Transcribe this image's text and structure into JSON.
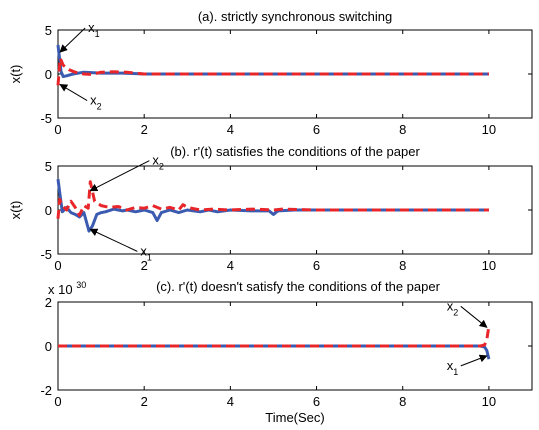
{
  "colors": {
    "x1": "#3a5bb0",
    "x2": "#e8262a",
    "axis": "#000000"
  },
  "x_label": "Time(Sec)",
  "chart_data": [
    {
      "type": "line",
      "title": "(a). strictly synchronous switching",
      "ylabel": "x(t)",
      "xlim": [
        0,
        11
      ],
      "ylim": [
        -5,
        5
      ],
      "xticks": [
        "0",
        "2",
        "4",
        "6",
        "8",
        "10"
      ],
      "yticks": [
        "-5",
        "0",
        "5"
      ],
      "exponent": "",
      "annotations": [
        {
          "label": "x",
          "sub": "1",
          "series": "x1",
          "point": [
            0.05,
            2.5
          ]
        },
        {
          "label": "x",
          "sub": "2",
          "series": "x2",
          "point": [
            0.05,
            -1.2
          ]
        }
      ],
      "series": [
        {
          "id": "x1",
          "color": "#3a5bb0",
          "dashed": false,
          "x": [
            0,
            0.03,
            0.07,
            0.12,
            0.2,
            0.35,
            0.6,
            1.0,
            1.5,
            2.0,
            3.0,
            5.0,
            7.0,
            10.0
          ],
          "y": [
            3.3,
            2.0,
            0.3,
            -0.3,
            -0.2,
            0.0,
            0.2,
            0.1,
            0.1,
            0.0,
            0.0,
            0.0,
            0.0,
            0.0
          ]
        },
        {
          "id": "x2",
          "color": "#e8262a",
          "dashed": true,
          "x": [
            0,
            0.05,
            0.12,
            0.25,
            0.4,
            0.6,
            0.8,
            1.0,
            1.3,
            1.6,
            2.0,
            3.0,
            5.0,
            10.0
          ],
          "y": [
            -1.3,
            1.8,
            1.0,
            0.5,
            0.2,
            0.0,
            -0.05,
            0.2,
            0.25,
            0.2,
            0.0,
            0.0,
            0.0,
            0.0
          ]
        }
      ]
    },
    {
      "type": "line",
      "title": "(b). r'(t) satisfies the conditions of the paper",
      "ylabel": "x(t)",
      "xlim": [
        0,
        11
      ],
      "ylim": [
        -5,
        5
      ],
      "xticks": [
        "0",
        "2",
        "4",
        "6",
        "8",
        "10"
      ],
      "yticks": [
        "-5",
        "0",
        "5"
      ],
      "exponent": "",
      "annotations": [
        {
          "label": "x",
          "sub": "2",
          "series": "x2",
          "point": [
            0.75,
            2.2
          ]
        },
        {
          "label": "x",
          "sub": "1",
          "series": "x1",
          "point": [
            0.75,
            -2.2
          ]
        }
      ],
      "series": [
        {
          "id": "x1",
          "color": "#3a5bb0",
          "dashed": false,
          "x": [
            0,
            0.04,
            0.1,
            0.2,
            0.3,
            0.4,
            0.5,
            0.6,
            0.72,
            0.8,
            0.9,
            1.0,
            1.1,
            1.3,
            1.5,
            1.6,
            1.8,
            2.0,
            2.2,
            2.3,
            2.4,
            2.6,
            2.8,
            3.0,
            3.3,
            3.5,
            3.7,
            4.0,
            4.5,
            4.9,
            5.0,
            5.1,
            5.5,
            6.0,
            6.3,
            7.0,
            8.0,
            10.0
          ],
          "y": [
            3.5,
            2.0,
            -0.2,
            0.3,
            -0.3,
            -0.5,
            -0.8,
            -0.3,
            -2.4,
            -1.8,
            -0.5,
            -0.3,
            -0.2,
            0.1,
            -0.1,
            0.0,
            -0.2,
            0.0,
            -0.3,
            -1.2,
            -0.3,
            0.0,
            -0.3,
            0.0,
            -0.2,
            0.0,
            -0.2,
            0.0,
            -0.1,
            -0.1,
            -0.5,
            -0.1,
            0.0,
            0.0,
            0.0,
            0.0,
            0.0,
            0.0
          ]
        },
        {
          "id": "x2",
          "color": "#e8262a",
          "dashed": true,
          "x": [
            0,
            0.04,
            0.1,
            0.2,
            0.3,
            0.4,
            0.5,
            0.6,
            0.7,
            0.75,
            0.85,
            1.0,
            1.2,
            1.4,
            1.6,
            1.8,
            2.0,
            2.2,
            2.4,
            2.6,
            2.8,
            2.9,
            3.0,
            3.3,
            3.6,
            4.0,
            4.5,
            5.0,
            5.2,
            6.0,
            7.0,
            10.0
          ],
          "y": [
            -1.0,
            1.2,
            0.5,
            0.0,
            1.0,
            0.3,
            -0.6,
            0.5,
            0.2,
            3.2,
            1.0,
            0.5,
            0.3,
            0.4,
            0.0,
            0.3,
            0.2,
            0.5,
            0.1,
            0.3,
            0.0,
            0.6,
            0.3,
            0.0,
            0.1,
            0.0,
            0.1,
            0.0,
            0.1,
            0.0,
            0.0,
            0.0
          ]
        }
      ]
    },
    {
      "type": "line",
      "title": "(c). r'(t)  doesn't satisfy the conditions of the paper",
      "ylabel": "x(t)",
      "xlim": [
        0,
        11
      ],
      "ylim": [
        -2,
        2
      ],
      "xticks": [
        "0",
        "2",
        "4",
        "6",
        "8",
        "10"
      ],
      "yticks": [
        "-2",
        "0",
        "2"
      ],
      "exponent": "x 10",
      "exponent_power": "30",
      "annotations": [
        {
          "label": "x",
          "sub": "2",
          "series": "x2",
          "point": [
            9.95,
            0.85
          ]
        },
        {
          "label": "x",
          "sub": "1",
          "series": "x1",
          "point": [
            9.95,
            -0.45
          ]
        }
      ],
      "series": [
        {
          "id": "x1",
          "color": "#3a5bb0",
          "dashed": false,
          "x": [
            0,
            5,
            9.5,
            9.8,
            9.9,
            9.95,
            10.0
          ],
          "y": [
            0,
            0,
            0,
            0,
            -0.05,
            -0.2,
            -0.6
          ]
        },
        {
          "id": "x2",
          "color": "#e8262a",
          "dashed": true,
          "x": [
            0,
            5,
            9.5,
            9.8,
            9.9,
            9.95,
            10.0
          ],
          "y": [
            0,
            0,
            0,
            0,
            0.05,
            0.3,
            0.9
          ]
        }
      ]
    }
  ]
}
